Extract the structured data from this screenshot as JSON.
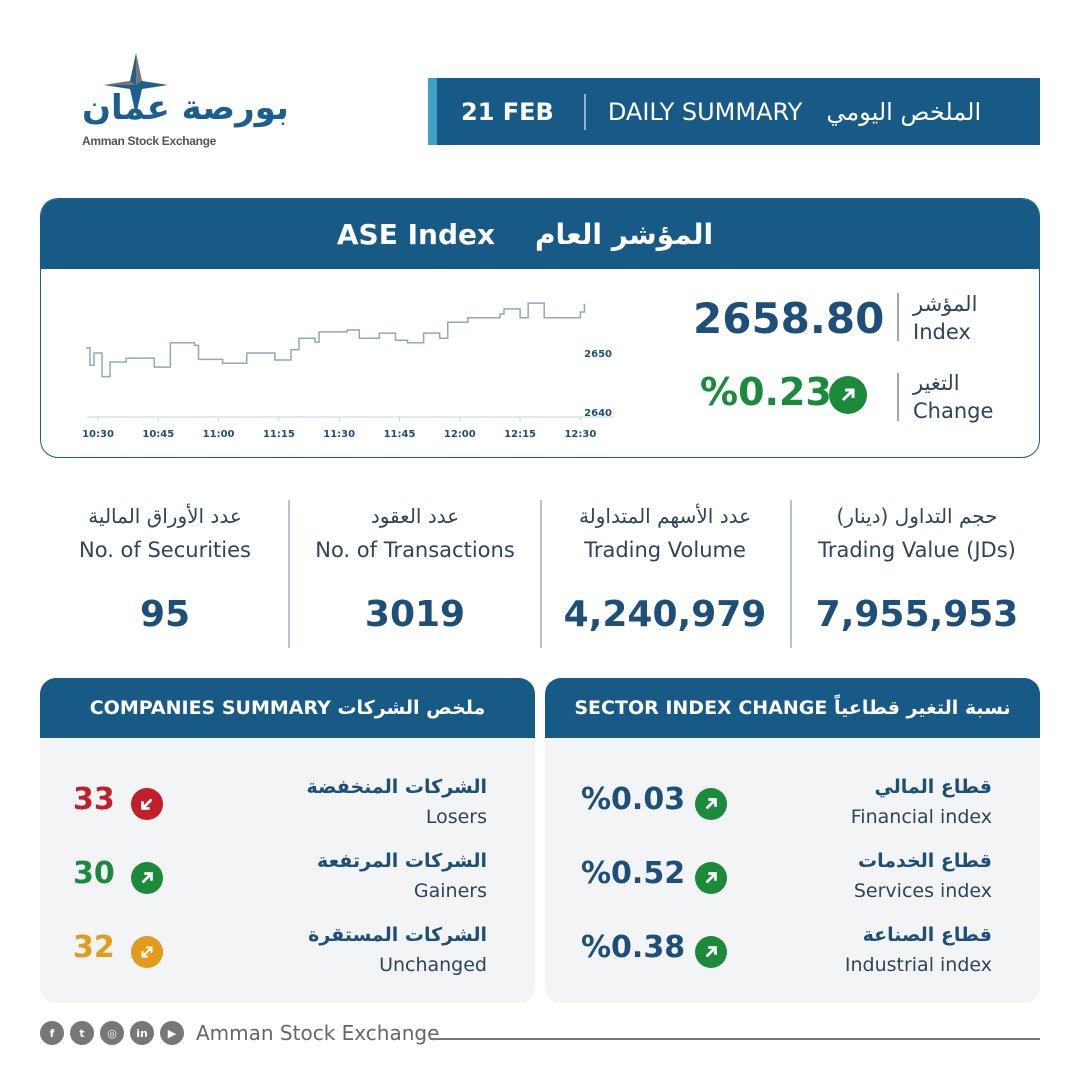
{
  "logo": {
    "arabic": "بورصة عمان",
    "english": "Amman Stock Exchange"
  },
  "banner": {
    "date": "21 FEB",
    "title_en": "DAILY SUMMARY",
    "title_ar": "الملخص اليومي"
  },
  "index_card": {
    "title_en": "ASE Index",
    "title_ar": "المؤشر العام",
    "index_label_ar": "المؤشر",
    "index_label_en": "Index",
    "index_value": "2658.80",
    "change_label_ar": "التغير",
    "change_label_en": "Change",
    "change_value": "%0.23",
    "change_direction": "up"
  },
  "chart_data": {
    "type": "area",
    "x_ticks": [
      "10:30",
      "10:45",
      "11:00",
      "11:15",
      "11:30",
      "11:45",
      "12:00",
      "12:15",
      "12:30"
    ],
    "y_ticks": [
      2640,
      2650
    ],
    "ylim": [
      2640,
      2660
    ],
    "grid": false,
    "points": [
      [
        "10:27",
        2650.8
      ],
      [
        "10:28",
        2648.1
      ],
      [
        "10:29",
        2650.0
      ],
      [
        "10:31",
        2646.3
      ],
      [
        "10:33",
        2648.6
      ],
      [
        "10:37",
        2649.2
      ],
      [
        "10:44",
        2647.8
      ],
      [
        "10:48",
        2651.6
      ],
      [
        "10:54",
        2651.2
      ],
      [
        "10:55",
        2649.0
      ],
      [
        "11:01",
        2648.4
      ],
      [
        "11:07",
        2650.0
      ],
      [
        "11:14",
        2648.9
      ],
      [
        "11:18",
        2650.5
      ],
      [
        "11:20",
        2652.3
      ],
      [
        "11:24",
        2651.7
      ],
      [
        "11:25",
        2653.3
      ],
      [
        "11:32",
        2653.6
      ],
      [
        "11:35",
        2652.3
      ],
      [
        "11:40",
        2653.1
      ],
      [
        "11:44",
        2652.0
      ],
      [
        "11:47",
        2651.6
      ],
      [
        "11:51",
        2653.1
      ],
      [
        "11:55",
        2652.3
      ],
      [
        "11:57",
        2654.8
      ],
      [
        "12:02",
        2655.5
      ],
      [
        "12:10",
        2656.1
      ],
      [
        "12:11",
        2656.9
      ],
      [
        "12:15",
        2655.5
      ],
      [
        "12:17",
        2657.8
      ],
      [
        "12:21",
        2655.5
      ],
      [
        "12:27",
        2655.5
      ],
      [
        "12:30",
        2656.4
      ],
      [
        "12:31",
        2657.7
      ]
    ],
    "colors": {
      "fill": "#d5e3ee",
      "line": "#8fa9bd"
    }
  },
  "stats": [
    {
      "ar": "عدد الأوراق المالية",
      "en": "No. of Securities",
      "value": "95"
    },
    {
      "ar": "عدد العقود",
      "en": "No. of Transactions",
      "value": "3019"
    },
    {
      "ar": "عدد الأسهم المتداولة",
      "en": "Trading Volume",
      "value": "4,240,979"
    },
    {
      "ar": "حجم التداول (دينار)",
      "en": "Trading Value (JDs)",
      "value": "7,955,953"
    }
  ],
  "companies": {
    "title": "COMPANIES SUMMARY ملخص الشركات",
    "rows": [
      {
        "ar": "الشركات المنخفضة",
        "en": "Losers",
        "value": "33",
        "icon": "arrow-down-left",
        "color": "#c21f2b"
      },
      {
        "ar": "الشركات المرتفعة",
        "en": "Gainers",
        "value": "30",
        "icon": "arrow-up-right",
        "color": "#1b8a3a"
      },
      {
        "ar": "الشركات المستقرة",
        "en": "Unchanged",
        "value": "32",
        "icon": "arrows-both",
        "color": "#e39b1c"
      }
    ]
  },
  "sectors": {
    "title": "SECTOR INDEX CHANGE  نسبة التغير قطاعياً",
    "rows": [
      {
        "ar": "قطاع المالي",
        "en": "Financial index",
        "value": "%0.03",
        "icon": "arrow-up-right",
        "color": "#1b8a3a"
      },
      {
        "ar": "قطاع الخدمات",
        "en": "Services index",
        "value": "%0.52",
        "icon": "arrow-up-right",
        "color": "#1b8a3a"
      },
      {
        "ar": "قطاع الصناعة",
        "en": "Industrial index",
        "value": "%0.38",
        "icon": "arrow-up-right",
        "color": "#1b8a3a"
      }
    ]
  },
  "footer": {
    "social": [
      "f",
      "t",
      "ig",
      "in",
      "yt"
    ],
    "text": "Amman Stock Exchange"
  },
  "colors": {
    "primary": "#175a86",
    "accent": "#3fa0c9",
    "up": "#1b8a3a",
    "down": "#c21f2b",
    "flat": "#e39b1c"
  }
}
